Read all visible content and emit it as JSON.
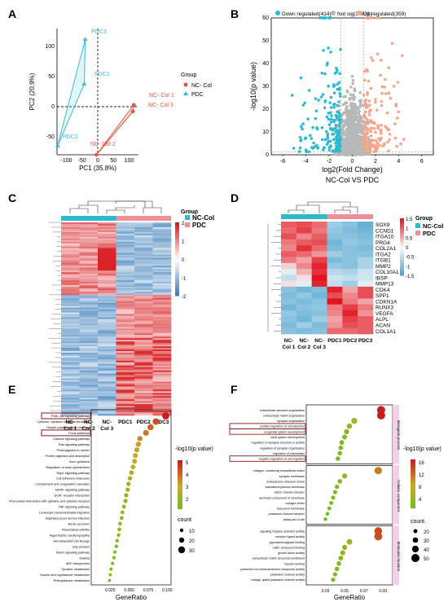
{
  "panels": {
    "A": {
      "label": "A",
      "xlabel": "PC1 (35.8%)",
      "ylabel": "PC2 (20.9%)",
      "legend_title": "Group",
      "legend_items": [
        "NC- Col",
        "PDC"
      ],
      "xticks": [
        "-100",
        "-50",
        "0",
        "50",
        "100"
      ],
      "yticks": [
        "100",
        "50",
        "0",
        "-50"
      ],
      "point_labels": [
        "PDC3",
        "PDC1",
        "PDC2",
        "NC- Col 1",
        "NC- Col 3",
        "NC- Col 2"
      ]
    },
    "B": {
      "label": "B",
      "legend": [
        "Down regulated(414)",
        "Not sig(34831)",
        "Up regulated(359)"
      ],
      "xlabel": "log2(Fold Change)",
      "ylabel": "-log10(p value)",
      "subtitle": "NC-Col VS PDC",
      "xticks": [
        "-6",
        "-4",
        "-2",
        "0",
        "2",
        "4",
        "6"
      ],
      "yticks": [
        "0",
        "10",
        "20",
        "30",
        "40",
        "50",
        "60"
      ]
    },
    "C": {
      "label": "C",
      "col_labels": [
        "NC-\nCol 1",
        "NC-\nCol 2",
        "NC-\nCol 3",
        "PDC1",
        "PDC2",
        "PDC3"
      ],
      "scale_ticks": [
        "2",
        "1",
        "0",
        "-1",
        "-2"
      ],
      "group_title": "Group",
      "groups": [
        "NC-Col",
        "PDC"
      ]
    },
    "D": {
      "label": "D",
      "genes": [
        "SOX9",
        "CCND1",
        "ITGA10",
        "PRG4",
        "COL2A1",
        "ITGA2",
        "ITGB1",
        "MMP2",
        "COL10A1",
        "IBSP",
        "MMP13",
        "CDK4",
        "SPP1",
        "CDKN1A",
        "RUNX3",
        "VEGFA",
        "ALPL",
        "ACAN",
        "COL1A1"
      ],
      "col_labels": [
        "NC-\nCol 1",
        "NC-\nCol 2",
        "NC-\nCol 3",
        "PDC1",
        "PDC2",
        "PDC3"
      ],
      "scale_ticks": [
        "1.5",
        "1",
        "0.5",
        "0",
        "-0.5",
        "-1",
        "-1.5"
      ],
      "group_title": "Group",
      "groups": [
        "NC-Col",
        "PDC"
      ]
    },
    "E": {
      "label": "E",
      "xlabel": "GeneRatio",
      "legend_title": "-log10(p value)",
      "legend_ticks": [
        "5",
        "4",
        "3",
        "2"
      ],
      "count_title": "count",
      "count_ticks": [
        "10",
        "20",
        "30"
      ],
      "xticks": [
        "0.025",
        "0.050",
        "0.075",
        "0.100"
      ]
    },
    "F": {
      "label": "F",
      "xlabel": "GeneRatio",
      "legend_title": "-log10(p value)",
      "legend_ticks": [
        "16",
        "12",
        "8",
        "4"
      ],
      "count_title": "count",
      "count_ticks": [
        "20",
        "30",
        "40",
        "50"
      ],
      "xticks": [
        "0.03",
        "0.05",
        "0.07",
        "0.09"
      ],
      "facets": [
        "Biological process",
        "Cellular component",
        "Molecular function"
      ]
    }
  },
  "chart_data": [
    {
      "type": "scatter",
      "title": "",
      "xlabel": "PC1 (35.8%)",
      "ylabel": "PC2 (20.9%)",
      "xlim": [
        -130,
        130
      ],
      "ylim": [
        -80,
        130
      ],
      "series": [
        {
          "name": "NC- Col",
          "points": [
            {
              "label": "NC- Col 1",
              "x": 115,
              "y": 3
            },
            {
              "label": "NC- Col 3",
              "x": 112,
              "y": -8
            },
            {
              "label": "NC- Col 2",
              "x": -4,
              "y": -80
            }
          ]
        },
        {
          "name": "PDC",
          "points": [
            {
              "label": "PDC3",
              "x": -40,
              "y": 112
            },
            {
              "label": "PDC1",
              "x": -43,
              "y": 38
            },
            {
              "label": "PDC2",
              "x": -128,
              "y": -65
            }
          ]
        }
      ]
    },
    {
      "type": "scatter",
      "xlabel": "log2(Fold Change)",
      "ylabel": "-log10(p value)",
      "xlim": [
        -7,
        7
      ],
      "ylim": [
        0,
        60
      ],
      "series": [
        {
          "name": "Down regulated(414)",
          "color": "#2bbbd1"
        },
        {
          "name": "Not sig(34831)",
          "color": "#b8b8b8"
        },
        {
          "name": "Up regulated(359)",
          "color": "#f5a58c"
        }
      ],
      "subtitle": "NC-Col VS PDC"
    },
    {
      "type": "heatmap",
      "columns": [
        "NC-Col 1",
        "NC-Col 2",
        "NC-Col 3",
        "PDC1",
        "PDC2",
        "PDC3"
      ],
      "scale": [
        -2,
        2
      ]
    },
    {
      "type": "heatmap",
      "columns": [
        "NC-Col 1",
        "NC-Col 2",
        "NC-Col 3",
        "PDC1",
        "PDC2",
        "PDC3"
      ],
      "scale": [
        -1.5,
        1.5
      ],
      "rows": [
        "SOX9",
        "CCND1",
        "ITGA10",
        "PRG4",
        "COL2A1",
        "ITGA2",
        "ITGB1",
        "MMP2",
        "COL10A1",
        "IBSP",
        "MMP13",
        "CDK4",
        "SPP1",
        "CDKN1A",
        "RUNX3",
        "VEGFA",
        "ALPL",
        "ACAN",
        "COL1A1"
      ],
      "values": [
        [
          1.1,
          1.2,
          1.0,
          -0.8,
          -1.0,
          -1.3
        ],
        [
          1.0,
          1.3,
          0.9,
          -0.9,
          -1.1,
          -1.2
        ],
        [
          1.2,
          0.8,
          1.1,
          -1.0,
          -1.0,
          -1.1
        ],
        [
          0.9,
          1.1,
          1.2,
          -1.2,
          -0.9,
          -1.0
        ],
        [
          0.8,
          1.4,
          1.0,
          -1.1,
          -1.0,
          -1.1
        ],
        [
          1.1,
          1.0,
          0.7,
          -0.8,
          -1.0,
          -1.0
        ],
        [
          0.9,
          0.6,
          1.3,
          -1.1,
          -1.0,
          -0.7
        ],
        [
          0.3,
          0.8,
          1.5,
          -0.9,
          -1.0,
          -0.7
        ],
        [
          -0.2,
          0.5,
          1.4,
          -0.6,
          -0.7,
          -0.4
        ],
        [
          -0.5,
          0.2,
          1.6,
          -0.4,
          -0.5,
          -0.4
        ],
        [
          0.2,
          -0.2,
          1.5,
          -0.5,
          -0.8,
          -0.2
        ],
        [
          -1.0,
          -1.2,
          -1.1,
          1.5,
          0.6,
          1.2
        ],
        [
          -1.1,
          -0.9,
          -1.2,
          1.2,
          0.8,
          1.2
        ],
        [
          -1.0,
          -1.1,
          -1.0,
          1.6,
          0.9,
          0.6
        ],
        [
          -1.2,
          -1.0,
          -0.9,
          0.9,
          1.3,
          0.9
        ],
        [
          -0.9,
          -1.1,
          -1.0,
          0.8,
          1.5,
          0.7
        ],
        [
          -1.0,
          -1.2,
          -0.8,
          0.6,
          1.3,
          1.1
        ],
        [
          -1.1,
          -0.8,
          -1.1,
          0.7,
          1.2,
          1.1
        ],
        [
          -1.0,
          -1.1,
          -1.0,
          1.0,
          1.0,
          1.1
        ]
      ]
    },
    {
      "type": "scatter",
      "xlabel": "GeneRatio",
      "xlim": [
        0,
        0.105
      ],
      "terms": [
        "PI3K- Akt signaling pathway",
        "Cytokine- cytokine receptor interaction",
        "Human papillomavirus infection",
        "Focal adhesion",
        "Calcium signaling pathway",
        "Ras signaling pathway",
        "Proteoglycans in cancer",
        "Protein digestion and absorption",
        "Axon guidance",
        "Regulation of actin cytoskeleton",
        "Rap1 signaling pathway",
        "Cell adhesion molecules",
        "Complement and coagulation cascades",
        "MAPK signaling pathway",
        "ECM- receptor interaction",
        "Viral protein interaction with cytokine and cytokine receptor",
        "TNF signaling pathway",
        "Leukocyte transendothelial migration",
        "Staphylococcus aureus infection",
        "Renin secretion",
        "Rheumatoid arthritis",
        "Hypertrophic cardiomyopathy",
        "Hematopoietic cell lineage",
        "Gap junction",
        "Notch signaling pathway",
        "Malaria",
        "ABC transporters",
        "Tyrosine metabolism",
        "Taurine and hypotaurine metabolism",
        "Phenylalanine metabolism"
      ],
      "x": [
        0.098,
        0.085,
        0.078,
        0.072,
        0.064,
        0.062,
        0.06,
        0.058,
        0.057,
        0.055,
        0.053,
        0.051,
        0.049,
        0.048,
        0.046,
        0.045,
        0.043,
        0.041,
        0.04,
        0.038,
        0.037,
        0.036,
        0.034,
        0.033,
        0.031,
        0.03,
        0.028,
        0.026,
        0.025,
        0.024
      ],
      "neglog10p": [
        5.5,
        4.8,
        4.5,
        4.2,
        3.9,
        3.7,
        3.6,
        3.4,
        3.3,
        3.2,
        3.1,
        3.0,
        2.9,
        2.8,
        2.7,
        2.6,
        2.5,
        2.4,
        2.3,
        2.2,
        2.1,
        2.0,
        2.0,
        1.9,
        1.8,
        1.8,
        1.7,
        1.6,
        1.6,
        1.5
      ],
      "count": [
        32,
        28,
        26,
        24,
        20,
        20,
        19,
        18,
        18,
        17,
        17,
        16,
        15,
        15,
        14,
        14,
        13,
        12,
        12,
        11,
        11,
        10,
        10,
        10,
        9,
        9,
        8,
        8,
        7,
        7
      ]
    },
    {
      "type": "scatter",
      "xlabel": "GeneRatio",
      "xlim": [
        0.01,
        0.1
      ],
      "facets": [
        {
          "name": "Biological process",
          "terms": [
            "extracellular structure organization",
            "extracellular matrix organization",
            "synapse organization",
            "positive regulation of cell adhesion",
            "urogenital system development",
            "renal system development",
            "regulation of synapse structure or activity",
            "regulation of synapse organization",
            "regulation of chemotaxis",
            "negative regulation of cell migration"
          ],
          "x": [
            0.088,
            0.088,
            0.06,
            0.055,
            0.052,
            0.05,
            0.047,
            0.046,
            0.045,
            0.043
          ],
          "neglog10p": [
            16,
            16,
            8,
            7,
            6,
            6,
            6,
            5,
            5,
            5
          ],
          "count": [
            50,
            50,
            35,
            30,
            28,
            27,
            26,
            25,
            24,
            24
          ]
        },
        {
          "name": "Cellular component",
          "terms": [
            "collagen- containing extracellular matrix",
            "synaptic membrane",
            "endoplasmic reticulum lumen",
            "basolateral plasma membrane",
            "cation channel complex",
            "anchored component of membrane",
            "collagen trimer",
            "basement membrane",
            "potassium channel complex",
            "basal part of cell"
          ],
          "x": [
            0.085,
            0.05,
            0.045,
            0.042,
            0.04,
            0.038,
            0.036,
            0.034,
            0.032,
            0.03
          ],
          "neglog10p": [
            12,
            7,
            6,
            6,
            5,
            5,
            5,
            5,
            4,
            4
          ],
          "count": [
            45,
            28,
            25,
            23,
            22,
            21,
            20,
            19,
            18,
            17
          ]
        },
        {
          "name": "Molecular function",
          "terms": [
            "signaling receptor activator activity",
            "receptor ligand activity",
            "glycosaminoglycan binding",
            "sulfur compound binding",
            "growth factor activity",
            "extracellular matrix structural constituent",
            "heparin binding",
            "potassium ion transmembrane transporter activity",
            "potassium channel activity",
            "voltage- gated potassium channel activity"
          ],
          "x": [
            0.085,
            0.085,
            0.055,
            0.05,
            0.048,
            0.046,
            0.044,
            0.042,
            0.04,
            0.038
          ],
          "neglog10p": [
            14,
            14,
            8,
            7,
            6,
            6,
            6,
            5,
            5,
            5
          ],
          "count": [
            48,
            48,
            32,
            28,
            27,
            26,
            25,
            24,
            23,
            22
          ]
        }
      ]
    }
  ]
}
